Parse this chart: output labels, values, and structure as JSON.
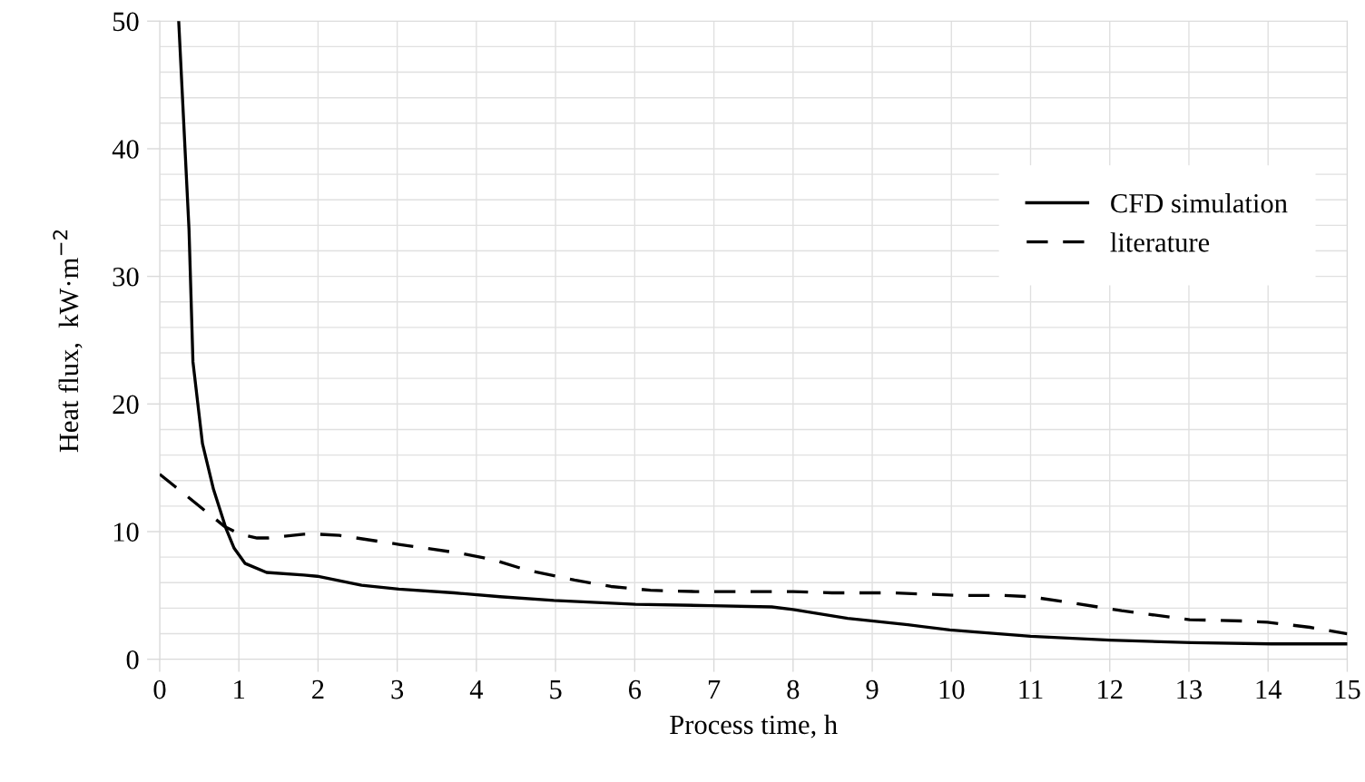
{
  "chart_data": {
    "type": "line",
    "xlabel": "Process time, h",
    "ylabel": "Heat flux,  kW·m$^{−2}$",
    "xlim": [
      0,
      15
    ],
    "xticks": [
      0,
      1,
      2,
      3,
      4,
      5,
      6,
      7,
      8,
      9,
      10,
      11,
      12,
      13,
      14,
      15
    ],
    "ylim": [
      0,
      50
    ],
    "yticks": [
      0,
      {
        "value": 2,
        "label": null
      },
      {
        "value": 4,
        "label": null
      },
      {
        "value": 6,
        "label": null
      },
      {
        "value": 8,
        "label": null
      },
      10,
      {
        "value": 12,
        "label": null
      },
      {
        "value": 14,
        "label": null
      },
      {
        "value": 16,
        "label": null
      },
      {
        "value": 18,
        "label": null
      },
      20,
      {
        "value": 22,
        "label": null
      },
      {
        "value": 24,
        "label": null
      },
      {
        "value": 26,
        "label": null
      },
      {
        "value": 28,
        "label": null
      },
      30,
      {
        "value": 32,
        "label": null
      },
      {
        "value": 34,
        "label": null
      },
      {
        "value": 36,
        "label": null
      },
      {
        "value": 38,
        "label": null
      },
      40,
      {
        "value": 42,
        "label": null
      },
      {
        "value": 44,
        "label": null
      },
      {
        "value": 46,
        "label": null
      },
      {
        "value": 48,
        "label": null
      },
      50
    ],
    "grid": true,
    "legend": "right",
    "marker": "none",
    "series": [
      {
        "name": "CFD simulation",
        "color": "#000000",
        "line_style": "solid",
        "x": [
          0.24,
          0.37,
          0.42,
          0.54,
          0.68,
          0.84,
          0.94,
          1.08,
          1.35,
          1.82,
          1.99,
          2.55,
          3.02,
          3.72,
          4.3,
          4.98,
          6.01,
          6.96,
          7.73,
          8.0,
          8.69,
          8.99,
          9.45,
          9.98,
          11.0,
          12.0,
          13.03,
          14.04,
          15
        ],
        "values": [
          50,
          33.7,
          23.3,
          16.9,
          13.3,
          10.2,
          8.7,
          7.5,
          6.8,
          6.6,
          6.5,
          5.8,
          5.5,
          5.2,
          4.9,
          4.6,
          4.3,
          4.2,
          4.1,
          3.9,
          3.2,
          3.0,
          2.7,
          2.3,
          1.8,
          1.5,
          1.3,
          1.2,
          1.2
        ]
      },
      {
        "name": "literature",
        "color": "#000000",
        "line_style": "dashed",
        "x": [
          0,
          0.2,
          0.82,
          1.01,
          1.23,
          1.37,
          1.82,
          1.99,
          2.27,
          3.02,
          3.81,
          4.21,
          4.63,
          5.24,
          5.7,
          6.2,
          6.77,
          8.0,
          8.49,
          9.24,
          10.1,
          10.64,
          10.99,
          11.54,
          12.15,
          13.01,
          13.67,
          13.99,
          14.53,
          15
        ],
        "values": [
          14.5,
          13.5,
          10.4,
          9.8,
          9.5,
          9.5,
          9.8,
          9.8,
          9.7,
          9.0,
          8.3,
          7.8,
          7.0,
          6.2,
          5.7,
          5.4,
          5.3,
          5.3,
          5.2,
          5.2,
          5.0,
          5.0,
          4.9,
          4.4,
          3.8,
          3.1,
          3.0,
          2.9,
          2.5,
          2.0
        ]
      }
    ]
  }
}
